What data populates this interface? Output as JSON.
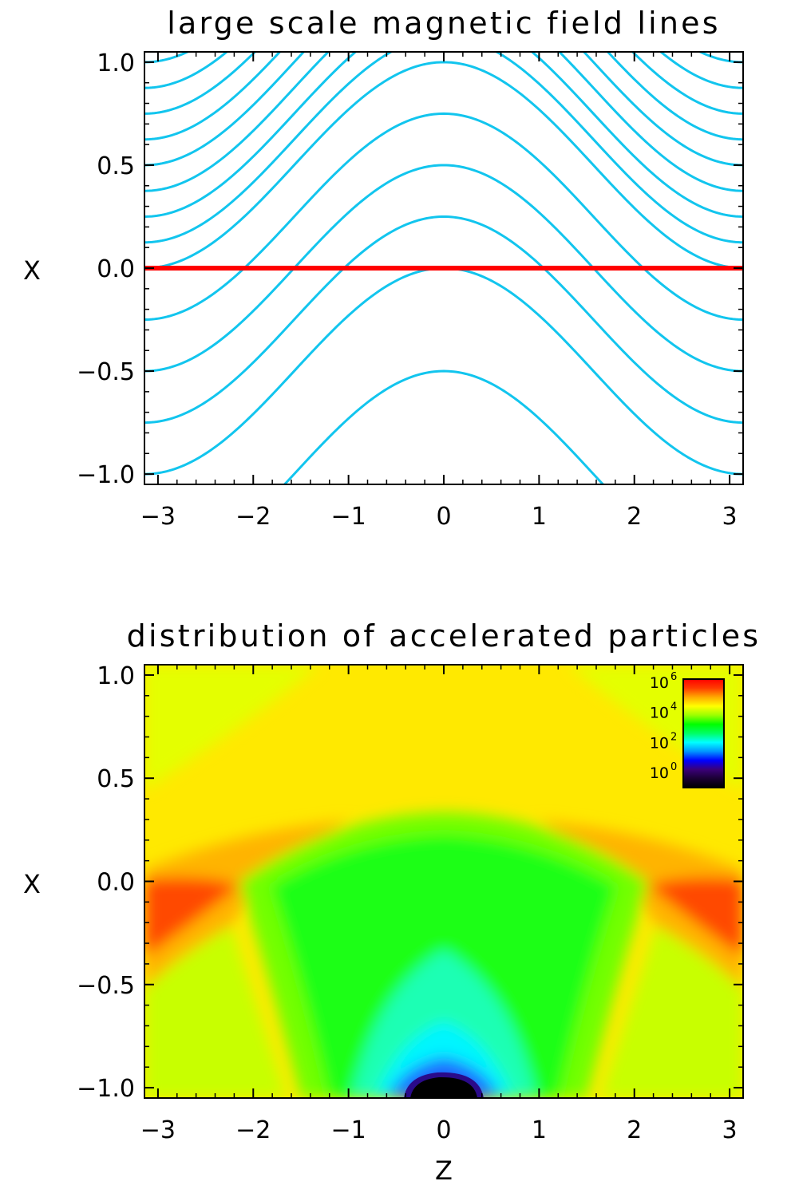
{
  "chart_data": [
    {
      "type": "line",
      "title": "large scale magnetic field lines",
      "xlabel": "",
      "ylabel": "X",
      "xlim": [
        -3.14159,
        3.14159
      ],
      "ylim": [
        -1.05,
        1.05
      ],
      "x_ticks": [
        -3,
        -2,
        -1,
        0,
        1,
        2,
        3
      ],
      "x_tick_labels": [
        "−3",
        "−2",
        "−1",
        "0",
        "1",
        "2",
        "3"
      ],
      "y_ticks": [
        -1.0,
        -0.5,
        0.0,
        0.5,
        1.0
      ],
      "y_tick_labels": [
        "−1.0",
        "−0.5",
        "0.0",
        "0.5",
        "1.0"
      ],
      "field_line_color": "#12c5ee",
      "reference_line": {
        "y": 0.0,
        "color": "#ff0000"
      },
      "field_line_model": "x = c + 0.5*(1 + cos z)",
      "field_line_levels": [
        -1.5,
        -1.0,
        -0.75,
        -0.5,
        -0.25,
        0.0,
        0.125,
        0.25,
        0.375,
        0.5,
        0.625,
        0.75,
        0.875,
        1.0
      ],
      "grid": false
    },
    {
      "type": "heatmap",
      "title": "distribution of accelerated particles",
      "xlabel": "Z",
      "ylabel": "X",
      "xlim": [
        -3.14159,
        3.14159
      ],
      "ylim": [
        -1.05,
        1.05
      ],
      "x_ticks": [
        -3,
        -2,
        -1,
        0,
        1,
        2,
        3
      ],
      "x_tick_labels": [
        "−3",
        "−2",
        "−1",
        "0",
        "1",
        "2",
        "3"
      ],
      "y_ticks": [
        -1.0,
        -0.5,
        0.0,
        0.5,
        1.0
      ],
      "y_tick_labels": [
        "−1.0",
        "−0.5",
        "0.0",
        "0.5",
        "1.0"
      ],
      "colorbar": {
        "placement": "top-right",
        "scale": "log",
        "range": [
          -1,
          6.2
        ],
        "ticks": [
          0,
          2,
          4,
          6
        ],
        "tick_base": "10",
        "tick_exponents": [
          "0",
          "2",
          "4",
          "6"
        ],
        "colors": [
          "#000000",
          "#1a0033",
          "#3a0078",
          "#0000ff",
          "#0096ff",
          "#00ffff",
          "#00ff64",
          "#00ff00",
          "#9bff00",
          "#ffff00",
          "#ffaa00",
          "#ff3c00",
          "#ff0000"
        ]
      },
      "grid": false
    }
  ]
}
